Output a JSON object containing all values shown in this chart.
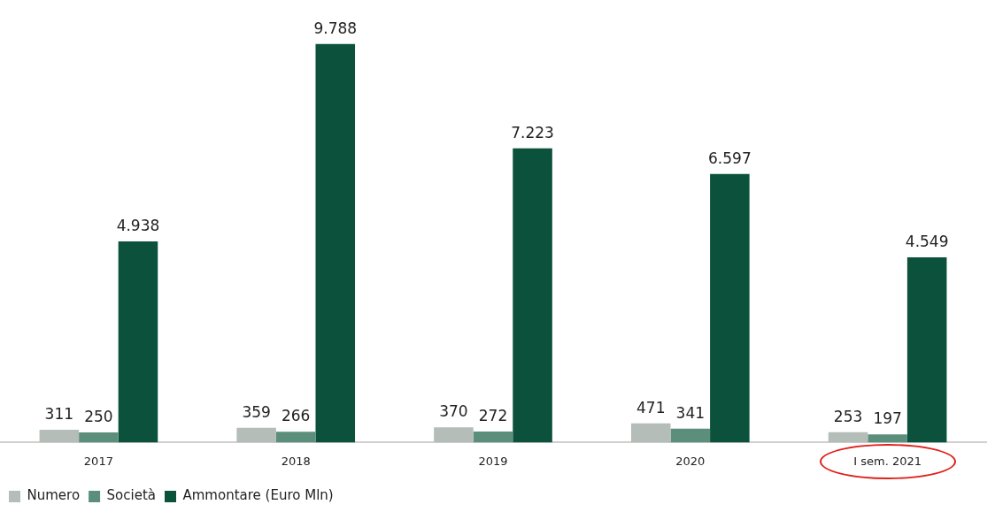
{
  "chart_data": {
    "type": "bar",
    "categories": [
      "2017",
      "2018",
      "2019",
      "2020",
      "I sem. 2021"
    ],
    "series": [
      {
        "name": "Numero",
        "color": "#b5bdb8",
        "values": [
          311,
          359,
          370,
          471,
          253
        ],
        "value_labels": [
          "311",
          "359",
          "370",
          "471",
          "253"
        ]
      },
      {
        "name": "Società",
        "color": "#5b8f7b",
        "values": [
          250,
          266,
          272,
          341,
          197
        ],
        "value_labels": [
          "250",
          "266",
          "272",
          "341",
          "197"
        ]
      },
      {
        "name": "Ammontare (Euro Mln)",
        "color": "#0b513b",
        "values": [
          4938,
          9788,
          7223,
          6597,
          4549
        ],
        "value_labels": [
          "4.938",
          "9.788",
          "7.223",
          "6.597",
          "4.549"
        ]
      }
    ],
    "legend": "bottom left",
    "grid": false
  }
}
